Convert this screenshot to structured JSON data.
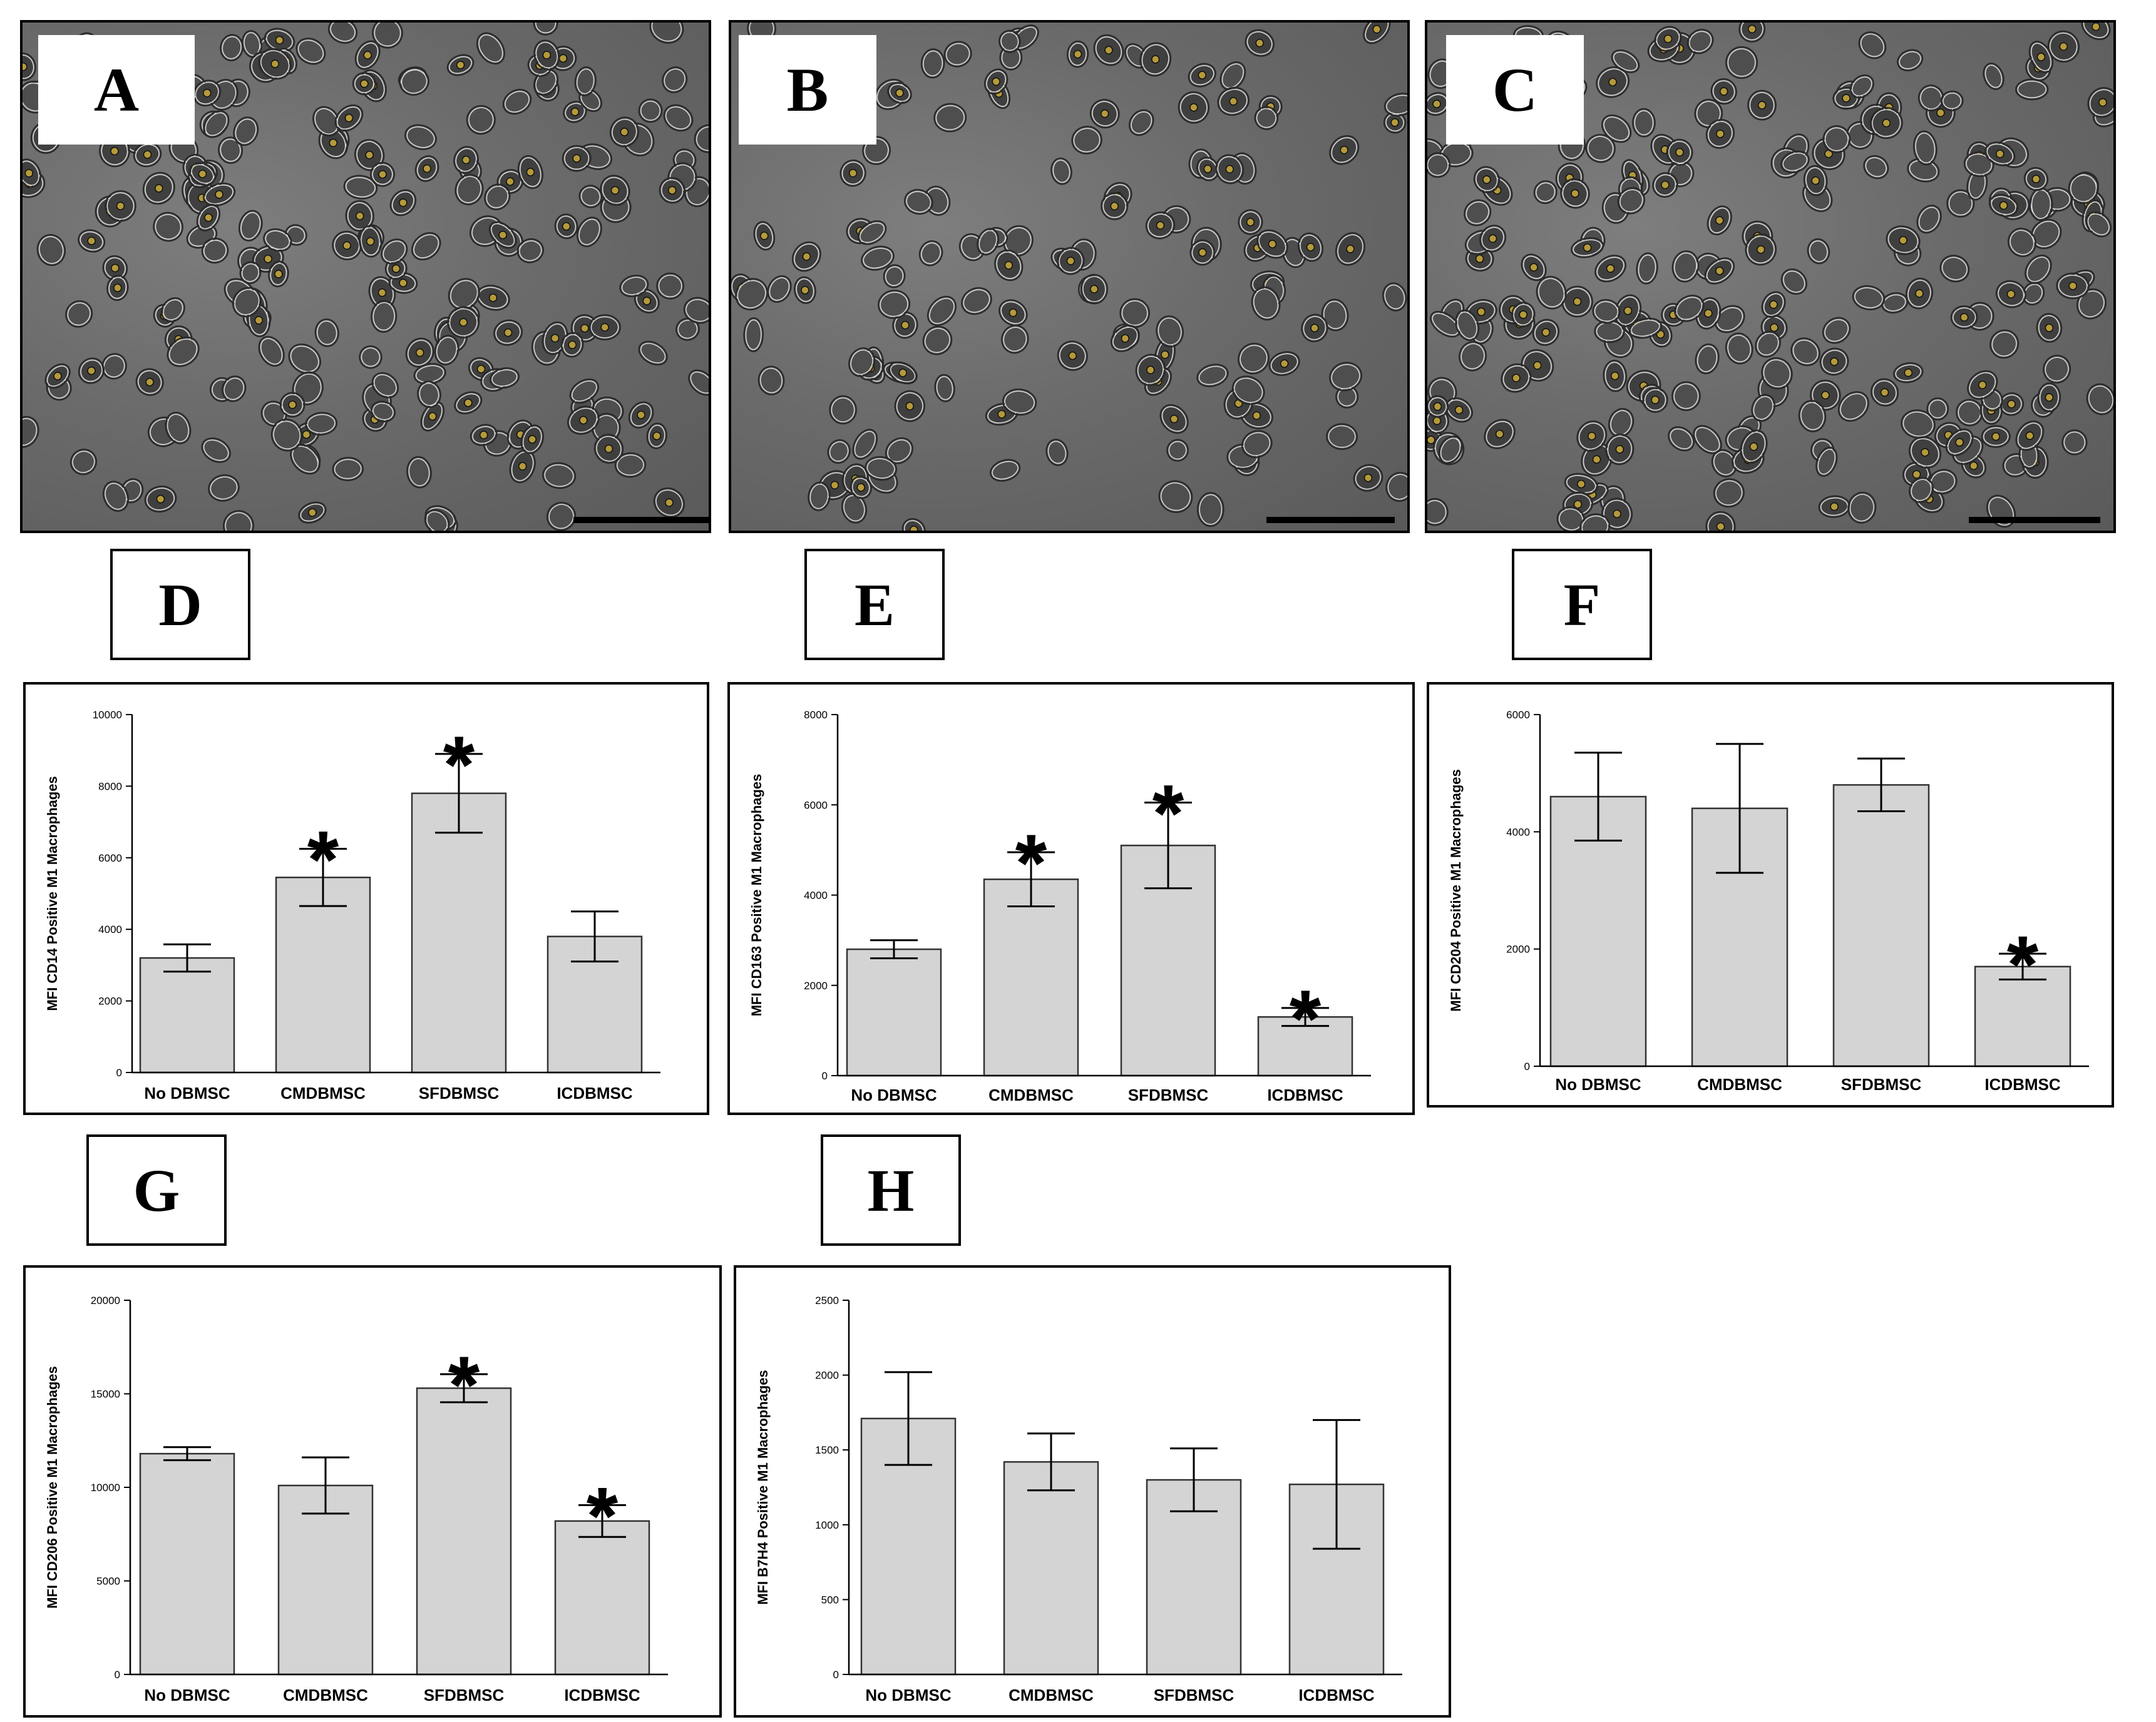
{
  "panel_labels": {
    "a": "A",
    "b": "B",
    "c": "C",
    "d": "D",
    "e": "E",
    "f": "F",
    "g": "G",
    "h": "H"
  },
  "photos": [
    {
      "label": "A",
      "density": 220
    },
    {
      "label": "B",
      "density": 140
    },
    {
      "label": "C",
      "density": 240
    }
  ],
  "colors": {
    "bar_fill": "#d4d4d4",
    "bar_stroke": "#333333",
    "axis": "#000000"
  },
  "chart_data": [
    {
      "panel": "D",
      "type": "bar",
      "categories": [
        "No DBMSC",
        "CMDBMSC",
        "SFDBMSC",
        "ICDBMSC"
      ],
      "values": [
        3200,
        5450,
        7800,
        3800
      ],
      "errors": [
        380,
        800,
        1100,
        700
      ],
      "significant": [
        false,
        true,
        true,
        false
      ],
      "ylabel": "MFI CD14 Positive M1 Macrophages",
      "ylim": [
        0,
        10000
      ],
      "yticks": [
        0,
        2000,
        4000,
        6000,
        8000,
        10000
      ]
    },
    {
      "panel": "E",
      "type": "bar",
      "categories": [
        "No DBMSC",
        "CMDBMSC",
        "SFDBMSC",
        "ICDBMSC"
      ],
      "values": [
        2800,
        4350,
        5100,
        1300
      ],
      "errors": [
        200,
        600,
        950,
        200
      ],
      "significant": [
        false,
        true,
        true,
        true
      ],
      "ylabel": "MFI CD163 Positive M1 Macrophages",
      "ylim": [
        0,
        8000
      ],
      "yticks": [
        0,
        2000,
        4000,
        6000,
        8000
      ]
    },
    {
      "panel": "F",
      "type": "bar",
      "categories": [
        "No DBMSC",
        "CMDBMSC",
        "SFDBMSC",
        "ICDBMSC"
      ],
      "values": [
        4600,
        4400,
        4800,
        1700
      ],
      "errors": [
        750,
        1100,
        450,
        220
      ],
      "significant": [
        false,
        false,
        false,
        true
      ],
      "ylabel": "MFI CD204 Positive M1 Macrophages",
      "ylim": [
        0,
        6000
      ],
      "yticks": [
        0,
        2000,
        4000,
        6000
      ]
    },
    {
      "panel": "G",
      "type": "bar",
      "categories": [
        "No DBMSC",
        "CMDBMSC",
        "SFDBMSC",
        "ICDBMSC"
      ],
      "values": [
        11800,
        10100,
        15300,
        8200
      ],
      "errors": [
        350,
        1500,
        750,
        850
      ],
      "significant": [
        false,
        false,
        true,
        true
      ],
      "ylabel": "MFI CD206 Positive M1 Macrophages",
      "ylim": [
        0,
        20000
      ],
      "yticks": [
        0,
        5000,
        10000,
        15000,
        20000
      ]
    },
    {
      "panel": "H",
      "type": "bar",
      "categories": [
        "No DBMSC",
        "CMDBMSC",
        "SFDBMSC",
        "ICDBMSC"
      ],
      "values": [
        1710,
        1420,
        1300,
        1270
      ],
      "errors": [
        310,
        190,
        210,
        430
      ],
      "significant": [
        false,
        false,
        false,
        false
      ],
      "ylabel": "MFI B7H4 Positive M1 Macrophages",
      "ylim": [
        0,
        2500
      ],
      "yticks": [
        0,
        500,
        1000,
        1500,
        2000,
        2500
      ]
    }
  ]
}
